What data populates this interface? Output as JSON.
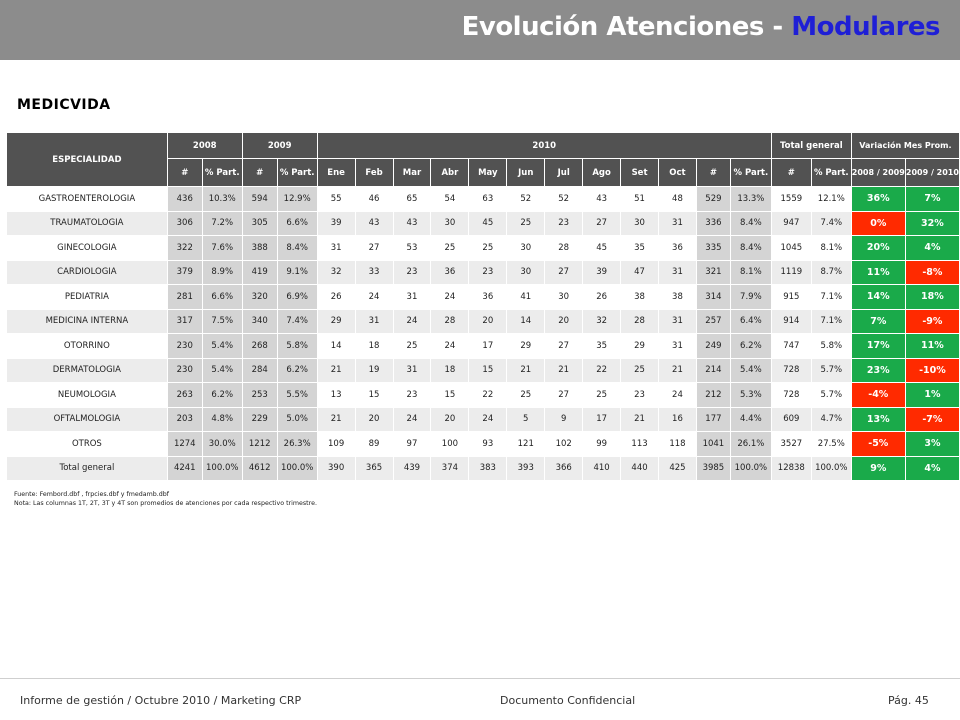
{
  "header": {
    "title_main": "Evolución Atenciones - ",
    "title_accent": "Modulares"
  },
  "subtitle": "MEDICVIDA",
  "table": {
    "specialty_header": "ESPECIALIDAD",
    "year_2008": "2008",
    "year_2009": "2009",
    "year_2010": "2010",
    "total_header": "Total general",
    "variation_header": "Variación Mes Prom.",
    "var_col_1": "2008 / 2009",
    "var_col_2": "2009 / 2010",
    "sub_num": "#",
    "sub_pct": "% Part.",
    "months": [
      "Ene",
      "Feb",
      "Mar",
      "Abr",
      "May",
      "Jun",
      "Jul",
      "Ago",
      "Set",
      "Oct"
    ],
    "rows": [
      {
        "name": "GASTROENTEROLOGIA",
        "n2008": "436",
        "p2008": "10.3%",
        "n2009": "594",
        "p2009": "12.9%",
        "m": [
          "55",
          "46",
          "65",
          "54",
          "63",
          "52",
          "52",
          "43",
          "51",
          "48"
        ],
        "n2010": "529",
        "p2010": "13.3%",
        "nt": "1559",
        "pt": "12.1%",
        "v1": "36%",
        "v2": "7%",
        "v1neg": false,
        "v2neg": false
      },
      {
        "name": "TRAUMATOLOGIA",
        "n2008": "306",
        "p2008": "7.2%",
        "n2009": "305",
        "p2009": "6.6%",
        "m": [
          "39",
          "43",
          "43",
          "30",
          "45",
          "25",
          "23",
          "27",
          "30",
          "31"
        ],
        "n2010": "336",
        "p2010": "8.4%",
        "nt": "947",
        "pt": "7.4%",
        "v1": "0%",
        "v2": "32%",
        "v1neg": true,
        "v2neg": false
      },
      {
        "name": "GINECOLOGIA",
        "n2008": "322",
        "p2008": "7.6%",
        "n2009": "388",
        "p2009": "8.4%",
        "m": [
          "31",
          "27",
          "53",
          "25",
          "25",
          "30",
          "28",
          "45",
          "35",
          "36"
        ],
        "n2010": "335",
        "p2010": "8.4%",
        "nt": "1045",
        "pt": "8.1%",
        "v1": "20%",
        "v2": "4%",
        "v1neg": false,
        "v2neg": false
      },
      {
        "name": "CARDIOLOGIA",
        "n2008": "379",
        "p2008": "8.9%",
        "n2009": "419",
        "p2009": "9.1%",
        "m": [
          "32",
          "33",
          "23",
          "36",
          "23",
          "30",
          "27",
          "39",
          "47",
          "31"
        ],
        "n2010": "321",
        "p2010": "8.1%",
        "nt": "1119",
        "pt": "8.7%",
        "v1": "11%",
        "v2": "-8%",
        "v1neg": false,
        "v2neg": true
      },
      {
        "name": "PEDIATRIA",
        "n2008": "281",
        "p2008": "6.6%",
        "n2009": "320",
        "p2009": "6.9%",
        "m": [
          "26",
          "24",
          "31",
          "24",
          "36",
          "41",
          "30",
          "26",
          "38",
          "38"
        ],
        "n2010": "314",
        "p2010": "7.9%",
        "nt": "915",
        "pt": "7.1%",
        "v1": "14%",
        "v2": "18%",
        "v1neg": false,
        "v2neg": false
      },
      {
        "name": "MEDICINA INTERNA",
        "n2008": "317",
        "p2008": "7.5%",
        "n2009": "340",
        "p2009": "7.4%",
        "m": [
          "29",
          "31",
          "24",
          "28",
          "20",
          "14",
          "20",
          "32",
          "28",
          "31"
        ],
        "n2010": "257",
        "p2010": "6.4%",
        "nt": "914",
        "pt": "7.1%",
        "v1": "7%",
        "v2": "-9%",
        "v1neg": false,
        "v2neg": true
      },
      {
        "name": "OTORRINO",
        "n2008": "230",
        "p2008": "5.4%",
        "n2009": "268",
        "p2009": "5.8%",
        "m": [
          "14",
          "18",
          "25",
          "24",
          "17",
          "29",
          "27",
          "35",
          "29",
          "31"
        ],
        "n2010": "249",
        "p2010": "6.2%",
        "nt": "747",
        "pt": "5.8%",
        "v1": "17%",
        "v2": "11%",
        "v1neg": false,
        "v2neg": false
      },
      {
        "name": "DERMATOLOGIA",
        "n2008": "230",
        "p2008": "5.4%",
        "n2009": "284",
        "p2009": "6.2%",
        "m": [
          "21",
          "19",
          "31",
          "18",
          "15",
          "21",
          "21",
          "22",
          "25",
          "21"
        ],
        "n2010": "214",
        "p2010": "5.4%",
        "nt": "728",
        "pt": "5.7%",
        "v1": "23%",
        "v2": "-10%",
        "v1neg": false,
        "v2neg": true
      },
      {
        "name": "NEUMOLOGIA",
        "n2008": "263",
        "p2008": "6.2%",
        "n2009": "253",
        "p2009": "5.5%",
        "m": [
          "13",
          "15",
          "23",
          "15",
          "22",
          "25",
          "27",
          "25",
          "23",
          "24"
        ],
        "n2010": "212",
        "p2010": "5.3%",
        "nt": "728",
        "pt": "5.7%",
        "v1": "-4%",
        "v2": "1%",
        "v1neg": true,
        "v2neg": false
      },
      {
        "name": "OFTALMOLOGIA",
        "n2008": "203",
        "p2008": "4.8%",
        "n2009": "229",
        "p2009": "5.0%",
        "m": [
          "21",
          "20",
          "24",
          "20",
          "24",
          "5",
          "9",
          "17",
          "21",
          "16"
        ],
        "n2010": "177",
        "p2010": "4.4%",
        "nt": "609",
        "pt": "4.7%",
        "v1": "13%",
        "v2": "-7%",
        "v1neg": false,
        "v2neg": true
      },
      {
        "name": "OTROS",
        "n2008": "1274",
        "p2008": "30.0%",
        "n2009": "1212",
        "p2009": "26.3%",
        "m": [
          "109",
          "89",
          "97",
          "100",
          "93",
          "121",
          "102",
          "99",
          "113",
          "118"
        ],
        "n2010": "1041",
        "p2010": "26.1%",
        "nt": "3527",
        "pt": "27.5%",
        "v1": "-5%",
        "v2": "3%",
        "v1neg": true,
        "v2neg": false
      },
      {
        "name": "Total general",
        "n2008": "4241",
        "p2008": "100.0%",
        "n2009": "4612",
        "p2009": "100.0%",
        "m": [
          "390",
          "365",
          "439",
          "374",
          "383",
          "393",
          "366",
          "410",
          "440",
          "425"
        ],
        "n2010": "3985",
        "p2010": "100.0%",
        "nt": "12838",
        "pt": "100.0%",
        "v1": "9%",
        "v2": "4%",
        "v1neg": false,
        "v2neg": false,
        "total": true
      }
    ]
  },
  "notes": {
    "source": "Fuente: Fembord.dbf , frpcies.dbf y fmedamb.dbf",
    "note": "Nota: Las columnas 1T, 2T, 3T y 4T son promedios de atenciones por cada respectivo trimestre."
  },
  "footer": {
    "left": "Informe de gestión / Octubre 2010 / Marketing CRP",
    "center": "Documento Confidencial",
    "right": "Pág. 45"
  },
  "colors": {
    "header_bg": "#8c8c8c",
    "accent": "#1f1fd6",
    "table_header": "#525252",
    "positive": "#1aaa4a",
    "negative": "#ff2a00"
  }
}
